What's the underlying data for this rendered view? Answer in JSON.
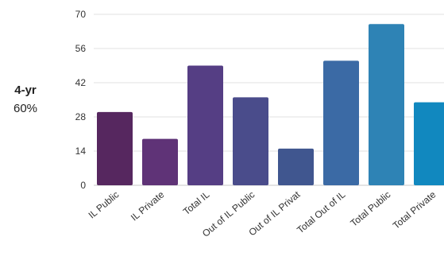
{
  "side_label": {
    "title": "4-yr",
    "subtitle": "60%"
  },
  "chart_data": {
    "type": "bar",
    "categories": [
      "IL Public",
      "IL Private",
      "Total IL",
      "Out of IL Public",
      "Out of IL Privat",
      "Total Out of IL",
      "Total Public",
      "Total Private"
    ],
    "values": [
      30,
      19,
      49,
      36,
      15,
      51,
      66,
      34
    ],
    "colors": [
      "#56275f",
      "#5f3377",
      "#553e84",
      "#4a4c8b",
      "#40568f",
      "#3b6aa5",
      "#2e83b5",
      "#1188bf"
    ],
    "ylim": [
      0,
      70
    ],
    "yticks": [
      0,
      14,
      28,
      42,
      56,
      70
    ],
    "grid": true,
    "xlabel": "",
    "ylabel": ""
  }
}
